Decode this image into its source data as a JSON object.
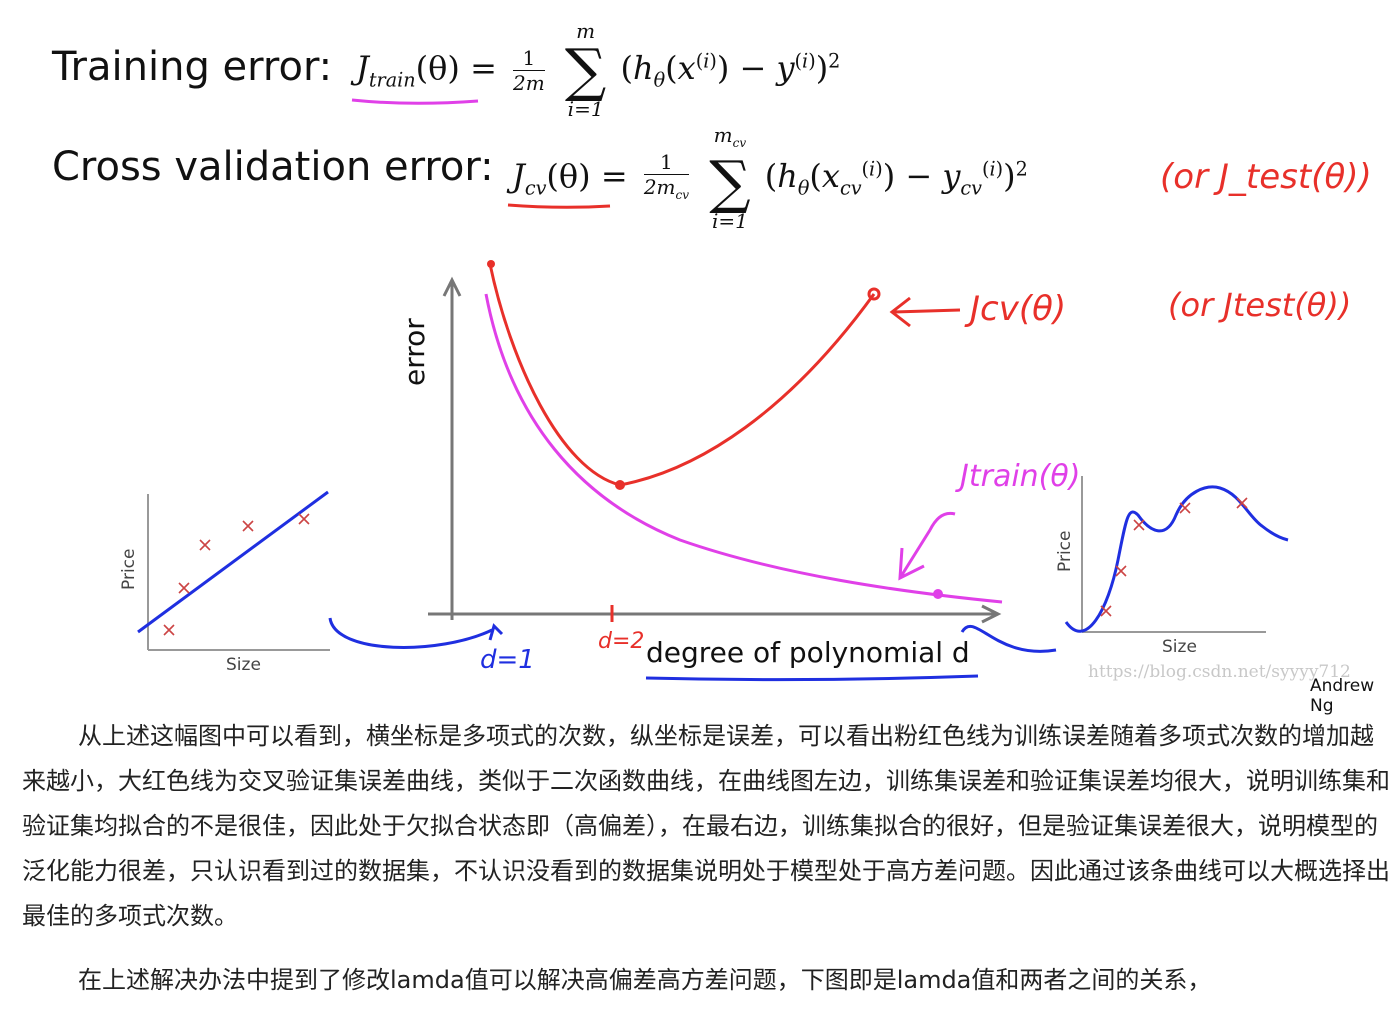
{
  "header": {
    "train_label": "Training error:",
    "cv_label": "Cross validation error:",
    "train_formula": {
      "lhs": "J_train(θ) =",
      "frac_num": "1",
      "frac_den": "2m",
      "sum_top": "m",
      "sum_bottom": "i=1",
      "body": "(hθ(x(i)) − y(i))2"
    },
    "cv_formula": {
      "lhs": "J_cv(θ) =",
      "frac_num": "1",
      "frac_den": "2m_cv",
      "sum_top": "m_cv",
      "sum_bottom": "i=1",
      "body": "(hθ(x_cv(i)) − y_cv(i))2"
    },
    "cv_note": "(or J_test(θ))"
  },
  "chart_data": [
    {
      "type": "line",
      "xlabel": "degree of polynomial d",
      "ylabel": "error",
      "series": [
        {
          "name": "Jcv(θ)",
          "color": "#e8302a"
        },
        {
          "name": "Jtrain(θ)",
          "color": "#e040e8"
        }
      ],
      "annotations": {
        "cv_label": "Jcv(θ)",
        "cv_note": "(or Jtest(θ))",
        "train_label": "Jtrain(θ)",
        "d1": "d=1",
        "d2": "d=2"
      }
    },
    {
      "type": "scatter",
      "xlabel": "Size",
      "ylabel": "Price",
      "note": "underfit: linear fit"
    },
    {
      "type": "scatter",
      "xlabel": "Size",
      "ylabel": "Price",
      "note": "overfit: high-degree polynomial"
    }
  ],
  "colors": {
    "cv_curve": "#e8302a",
    "train_curve": "#e040e8",
    "fit_line": "#1f2fe0",
    "marker": "#c44"
  },
  "watermark": "https://blog.csdn.net/syyyy712",
  "credit": "Andrew Ng",
  "paragraph1": "从上述这幅图中可以看到，横坐标是多项式的次数，纵坐标是误差，可以看出粉红色线为训练误差随着多项式次数的增加越来越小，大红色线为交叉验证集误差曲线，类似于二次函数曲线，在曲线图左边，训练集误差和验证集误差均很大，说明训练集和验证集均拟合的不是很佳，因此处于欠拟合状态即（高偏差），在最右边，训练集拟合的很好，但是验证集误差很大，说明模型的泛化能力很差，只认识看到过的数据集，不认识没看到的数据集说明处于模型处于高方差问题。因此通过该条曲线可以大概选择出最佳的多项式次数。",
  "paragraph2": "在上述解决办法中提到了修改lamda值可以解决高偏差高方差问题，下图即是lamda值和两者之间的关系，"
}
